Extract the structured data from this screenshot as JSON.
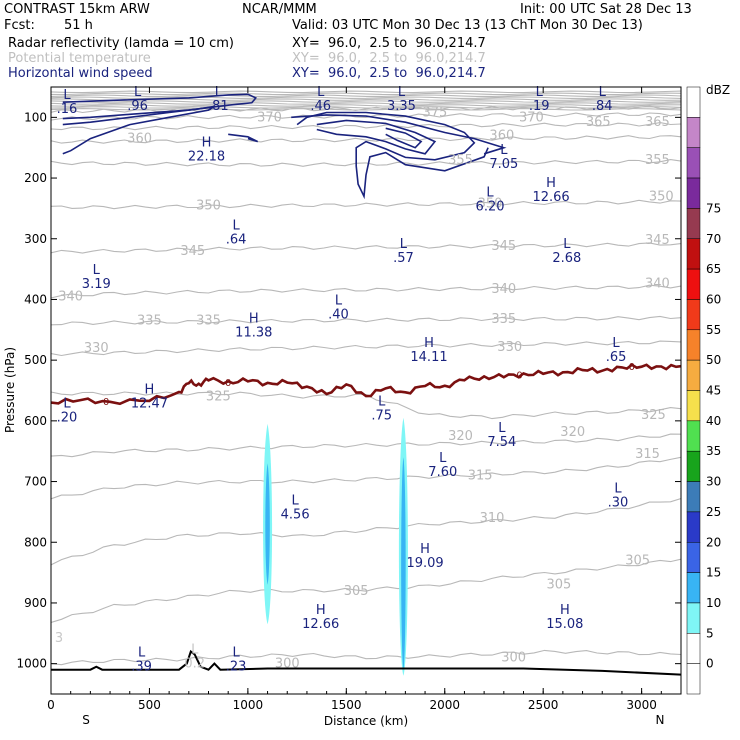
{
  "header": {
    "model": "CONTRAST 15km ARW",
    "org": "NCAR/MMM",
    "init": "Init: 00 UTC Sat 28 Dec 13",
    "fcst_label": "Fcst:",
    "fcst_value": "51 h",
    "valid": "Valid: 03 UTC Mon 30 Dec 13 (13 ChT Mon 30 Dec 13)",
    "field1": "Radar reflectivity (lamda = 10 cm)",
    "field2": "Potential temperature",
    "field3": "Horizontal wind speed",
    "xy": "XY=  96.0,  2.5 to  96.0,214.7"
  },
  "colors": {
    "navy": "#1a237e",
    "theta": "#b8b8b8",
    "freezing": "#7b1010",
    "terrain": "#000000"
  },
  "chart_data": {
    "type": "cross-section",
    "xlabel": "Distance (km)",
    "ylabel": "Pressure (hPa)",
    "xlim": [
      0,
      3200
    ],
    "ylim": [
      1050,
      50
    ],
    "x_ticks": [
      "0",
      "500",
      "1000",
      "1500",
      "2000",
      "2500",
      "3000"
    ],
    "x_tick_values": [
      0,
      500,
      1000,
      1500,
      2000,
      2500,
      3000
    ],
    "y_ticks": [
      "100",
      "200",
      "300",
      "400",
      "500",
      "600",
      "700",
      "800",
      "900",
      "1000"
    ],
    "y_tick_values": [
      100,
      200,
      300,
      400,
      500,
      600,
      700,
      800,
      900,
      1000
    ],
    "x_end_labels": [
      "S",
      "N"
    ],
    "colorbar": {
      "title": "dBZ",
      "labels": [
        "0",
        "5",
        "10",
        "15",
        "20",
        "25",
        "30",
        "35",
        "40",
        "45",
        "50",
        "55",
        "60",
        "65",
        "70",
        "75"
      ],
      "colors": [
        "#ffffff",
        "#ffffff",
        "#7ff6f6",
        "#38b4f4",
        "#3a64e6",
        "#2a3ac8",
        "#3c7cb8",
        "#18a41c",
        "#50e050",
        "#f6e04c",
        "#f6ac40",
        "#f6822a",
        "#f03a1a",
        "#ee1010",
        "#c01010",
        "#963a50",
        "#7a2a9c",
        "#9a50b6",
        "#c486c8",
        "#ffffff"
      ]
    },
    "theta_contours": [
      {
        "label": "300",
        "p": [
          1000,
          995,
          993,
          988,
          985,
          990,
          988,
          984,
          980,
          982,
          985
        ]
      },
      {
        "label": "305",
        "p": [
          930,
          905,
          892,
          880,
          880,
          878,
          872,
          860,
          850,
          840,
          828
        ]
      },
      {
        "label": "310",
        "p": [
          835,
          805,
          790,
          785,
          790,
          780,
          770,
          765,
          758,
          745,
          728
        ]
      },
      {
        "label": "315",
        "p": [
          728,
          710,
          702,
          700,
          700,
          696,
          692,
          688,
          684,
          675,
          660
        ]
      },
      {
        "label": "320",
        "p": [
          660,
          650,
          648,
          645,
          642,
          640,
          638,
          636,
          634,
          630,
          622
        ]
      },
      {
        "label": "325",
        "p": [
          555,
          555,
          555,
          555,
          560,
          558,
          590,
          594,
          588,
          585,
          580
        ]
      },
      {
        "label": "330",
        "p": [
          490,
          488,
          485,
          482,
          480,
          478,
          476,
          475,
          473,
          472,
          470
        ]
      },
      {
        "label": "335",
        "p": [
          440,
          438,
          437,
          436,
          435,
          434,
          433,
          432,
          432,
          431,
          430
        ]
      },
      {
        "label": "340",
        "p": [
          395,
          390,
          388,
          386,
          385,
          384,
          383,
          382,
          381,
          380,
          378
        ]
      },
      {
        "label": "345",
        "p": [
          322,
          320,
          318,
          316,
          315,
          314,
          313,
          312,
          311,
          310,
          308
        ]
      },
      {
        "label": "350",
        "p": [
          248,
          248,
          247,
          246,
          245,
          244,
          243,
          242,
          241,
          240,
          238
        ]
      },
      {
        "label": "355",
        "p": [
          175,
          176,
          177,
          178,
          178,
          177,
          176,
          175,
          174,
          173,
          172
        ]
      },
      {
        "label": "360",
        "p": [
          140,
          140,
          139,
          138,
          138,
          137,
          136,
          135,
          134,
          133,
          132
        ]
      },
      {
        "label": "365",
        "p": [
          118,
          118,
          117,
          116,
          116,
          115,
          114,
          113,
          112,
          112,
          111
        ]
      },
      {
        "label": "370",
        "p": [
          102,
          101,
          100,
          99,
          99,
          98,
          97,
          96,
          96,
          95,
          95
        ]
      },
      {
        "label": "375",
        "p": [
          90,
          89,
          88,
          87,
          87,
          86,
          86,
          85,
          85,
          84,
          84
        ]
      }
    ],
    "theta_label_positions": [
      {
        "label": "300",
        "x": 1200,
        "p": 1000
      },
      {
        "label": "300",
        "x": 2350,
        "p": 990
      },
      {
        "label": "305",
        "x": 1550,
        "p": 880
      },
      {
        "label": "305",
        "x": 2580,
        "p": 870
      },
      {
        "label": "305",
        "x": 2980,
        "p": 830
      },
      {
        "label": "310",
        "x": 2240,
        "p": 760
      },
      {
        "label": "315",
        "x": 2180,
        "p": 690
      },
      {
        "label": "315",
        "x": 3030,
        "p": 655
      },
      {
        "label": "320",
        "x": 2080,
        "p": 625
      },
      {
        "label": "320",
        "x": 2650,
        "p": 618
      },
      {
        "label": "325",
        "x": 850,
        "p": 560
      },
      {
        "label": "325",
        "x": 3060,
        "p": 590
      },
      {
        "label": "330",
        "x": 230,
        "p": 480
      },
      {
        "label": "330",
        "x": 2330,
        "p": 478
      },
      {
        "label": "335",
        "x": 500,
        "p": 435
      },
      {
        "label": "335",
        "x": 800,
        "p": 435
      },
      {
        "label": "335",
        "x": 2300,
        "p": 432
      },
      {
        "label": "340",
        "x": 100,
        "p": 395
      },
      {
        "label": "340",
        "x": 2300,
        "p": 383
      },
      {
        "label": "340",
        "x": 3080,
        "p": 374
      },
      {
        "label": "345",
        "x": 720,
        "p": 320
      },
      {
        "label": "345",
        "x": 2300,
        "p": 312
      },
      {
        "label": "345",
        "x": 3080,
        "p": 302
      },
      {
        "label": "350",
        "x": 800,
        "p": 245
      },
      {
        "label": "350",
        "x": 2230,
        "p": 242
      },
      {
        "label": "350",
        "x": 3100,
        "p": 230
      },
      {
        "label": "355",
        "x": 2080,
        "p": 170
      },
      {
        "label": "355",
        "x": 3080,
        "p": 170
      },
      {
        "label": "360",
        "x": 450,
        "p": 135
      },
      {
        "label": "360",
        "x": 2290,
        "p": 130
      },
      {
        "label": "365",
        "x": 3080,
        "p": 108
      },
      {
        "label": "365",
        "x": 2780,
        "p": 108
      },
      {
        "label": "370",
        "x": 2440,
        "p": 100
      },
      {
        "label": "370",
        "x": 1110,
        "p": 100
      },
      {
        "label": "375",
        "x": 1950,
        "p": 92
      }
    ],
    "freezing_level": {
      "label": "0",
      "points": [
        [
          0,
          570
        ],
        [
          150,
          565
        ],
        [
          300,
          570
        ],
        [
          500,
          565
        ],
        [
          650,
          555
        ],
        [
          700,
          535
        ],
        [
          750,
          542
        ],
        [
          800,
          530
        ],
        [
          900,
          538
        ],
        [
          1000,
          532
        ],
        [
          1100,
          540
        ],
        [
          1200,
          535
        ],
        [
          1300,
          545
        ],
        [
          1400,
          555
        ],
        [
          1500,
          540
        ],
        [
          1600,
          560
        ],
        [
          1700,
          545
        ],
        [
          1800,
          555
        ],
        [
          1900,
          540
        ],
        [
          2000,
          545
        ],
        [
          2100,
          530
        ],
        [
          2200,
          530
        ],
        [
          2300,
          525
        ],
        [
          2400,
          525
        ],
        [
          2500,
          520
        ],
        [
          2600,
          522
        ],
        [
          2700,
          515
        ],
        [
          2800,
          518
        ],
        [
          2900,
          512
        ],
        [
          3000,
          510
        ],
        [
          3100,
          512
        ],
        [
          3200,
          510
        ]
      ]
    },
    "terrain": [
      [
        0,
        1010
      ],
      [
        200,
        1010
      ],
      [
        230,
        1005
      ],
      [
        260,
        1010
      ],
      [
        650,
        1010
      ],
      [
        690,
        1000
      ],
      [
        710,
        980
      ],
      [
        730,
        985
      ],
      [
        760,
        1005
      ],
      [
        800,
        1010
      ],
      [
        830,
        1000
      ],
      [
        860,
        1010
      ],
      [
        1100,
        1008
      ],
      [
        1800,
        1008
      ],
      [
        2400,
        1008
      ],
      [
        2800,
        1012
      ],
      [
        3200,
        1018
      ]
    ],
    "wind_hl": [
      {
        "type": "L",
        "value": ".16",
        "x": 0,
        "p": 70
      },
      {
        "type": "L",
        "value": ".96",
        "x": 440,
        "p": 65
      },
      {
        "type": "L",
        "value": ".81",
        "x": 850,
        "p": 65
      },
      {
        "type": "L",
        "value": ".46",
        "x": 1370,
        "p": 65
      },
      {
        "type": "L",
        "value": "3.35",
        "x": 1780,
        "p": 65
      },
      {
        "type": "L",
        "value": ".19",
        "x": 2480,
        "p": 65
      },
      {
        "type": "L",
        "value": ".84",
        "x": 2800,
        "p": 65
      },
      {
        "type": "H",
        "value": "22.18",
        "x": 790,
        "p": 148
      },
      {
        "type": "L",
        "value": "7.05",
        "x": 2300,
        "p": 160
      },
      {
        "type": "L",
        "value": "6.20",
        "x": 2230,
        "p": 230
      },
      {
        "type": "H",
        "value": "12.66",
        "x": 2540,
        "p": 215
      },
      {
        "type": "L",
        "value": ".64",
        "x": 940,
        "p": 285
      },
      {
        "type": "L",
        "value": ".57",
        "x": 1790,
        "p": 315
      },
      {
        "type": "L",
        "value": "2.68",
        "x": 2620,
        "p": 315
      },
      {
        "type": "L",
        "value": "3.19",
        "x": 230,
        "p": 358
      },
      {
        "type": "L",
        "value": ".40",
        "x": 1460,
        "p": 408
      },
      {
        "type": "H",
        "value": "11.38",
        "x": 1030,
        "p": 438
      },
      {
        "type": "H",
        "value": "14.11",
        "x": 1920,
        "p": 478
      },
      {
        "type": "L",
        "value": ".65",
        "x": 2870,
        "p": 478
      },
      {
        "type": "H",
        "value": "12.47",
        "x": 500,
        "p": 555
      },
      {
        "type": "L",
        "value": ".20",
        "x": 0,
        "p": 578
      },
      {
        "type": "L",
        "value": ".75",
        "x": 1680,
        "p": 575
      },
      {
        "type": "L",
        "value": "7.54",
        "x": 2290,
        "p": 618
      },
      {
        "type": "L",
        "value": "7.60",
        "x": 1990,
        "p": 668
      },
      {
        "type": "L",
        "value": ".30",
        "x": 2880,
        "p": 718
      },
      {
        "type": "L",
        "value": "4.56",
        "x": 1240,
        "p": 738
      },
      {
        "type": "H",
        "value": "19.09",
        "x": 1900,
        "p": 818
      },
      {
        "type": "H",
        "value": "12.66",
        "x": 1370,
        "p": 918
      },
      {
        "type": "H",
        "value": "15.08",
        "x": 2610,
        "p": 918
      },
      {
        "type": "L",
        "value": ".39",
        "x": 460,
        "p": 988
      },
      {
        "type": "L",
        "value": ".23",
        "x": 940,
        "p": 988
      }
    ],
    "wind_hl_gray": [
      {
        "type": "L",
        "value": "0.2",
        "x": 730,
        "p": 1000
      },
      {
        "type": "",
        "value": "3",
        "x": 30,
        "p": 958
      }
    ],
    "reflectivity_columns": [
      {
        "x": 1100,
        "p_top": 605,
        "p_bottom": 935,
        "core_top": 670,
        "core_bottom": 870
      },
      {
        "x": 1790,
        "p_top": 595,
        "p_bottom": 1020,
        "core_top": 660,
        "core_bottom": 1010
      }
    ]
  }
}
